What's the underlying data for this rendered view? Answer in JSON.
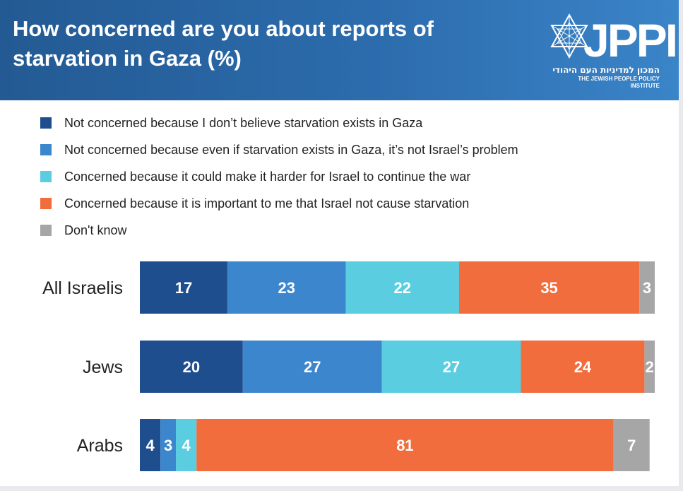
{
  "header": {
    "title_line1": "How concerned are you about reports of",
    "title_line2": "starvation in Gaza (%)",
    "logo_text": "JPPI",
    "logo_hebrew": "המכון למדיניות העם היהודי",
    "logo_english": "THE JEWISH PEOPLE POLICY INSTITUTE",
    "logo_icon": "star-of-david-icon"
  },
  "colors": {
    "header_bg": "#2a65a6",
    "series": [
      "#1f4e8e",
      "#3b86cd",
      "#5acde0",
      "#f26d3d",
      "#a6a6a6"
    ]
  },
  "chart_data": {
    "type": "bar",
    "orientation": "horizontal",
    "stacked": true,
    "title": "How concerned are you about reports of starvation in Gaza (%)",
    "legend_position": "top-left",
    "grid": false,
    "categories": [
      "All Israelis",
      "Jews",
      "Arabs"
    ],
    "series": [
      {
        "name": "Not concerned because I don’t believe starvation exists in Gaza",
        "color": "#1f4e8e",
        "values": [
          17,
          20,
          4
        ]
      },
      {
        "name": "Not concerned because even if starvation exists in Gaza, it’s not Israel’s problem",
        "color": "#3b86cd",
        "values": [
          23,
          27,
          3
        ]
      },
      {
        "name": "Concerned because it could make it harder for Israel to continue the war",
        "color": "#5acde0",
        "values": [
          22,
          27,
          4
        ]
      },
      {
        "name": "Concerned because it is important to me that Israel not cause starvation",
        "color": "#f26d3d",
        "values": [
          35,
          24,
          81
        ]
      },
      {
        "name": "Don't know",
        "color": "#a6a6a6",
        "values": [
          3,
          2,
          7
        ]
      }
    ],
    "xlim": [
      0,
      100
    ]
  }
}
